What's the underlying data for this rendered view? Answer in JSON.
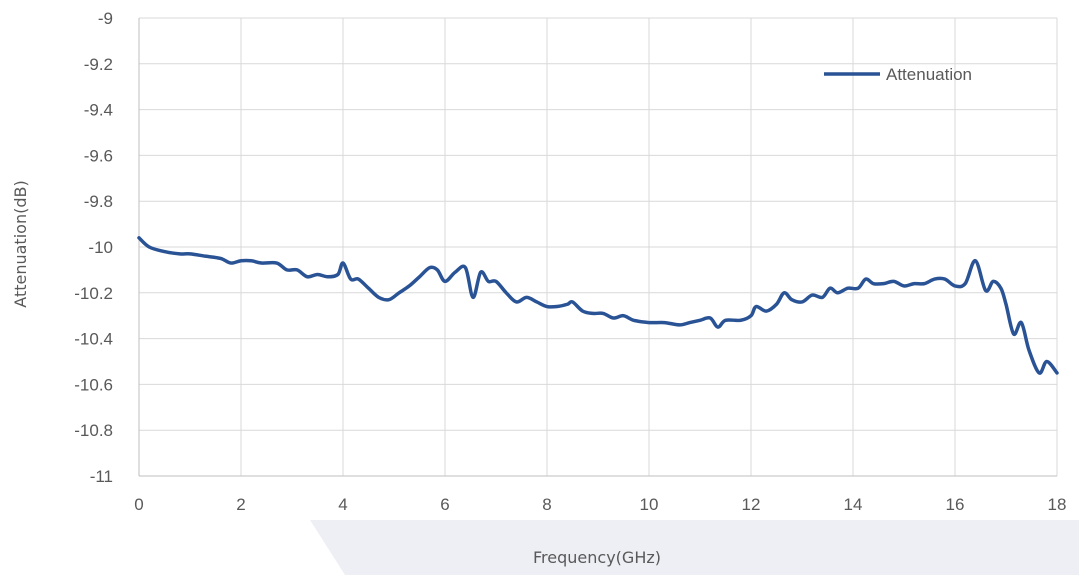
{
  "chart_data": {
    "type": "line",
    "xlabel": "Frequency(GHz)",
    "ylabel": "Attenuation(dB)",
    "xlim": [
      0,
      18
    ],
    "ylim": [
      -11,
      -9
    ],
    "xticks": [
      "0",
      "2",
      "4",
      "6",
      "8",
      "10",
      "12",
      "14",
      "16",
      "18"
    ],
    "yticks": [
      "-9",
      "-9.2",
      "-9.4",
      "-9.6",
      "-9.8",
      "-10",
      "-10.2",
      "-10.4",
      "-10.6",
      "-10.8",
      "-11"
    ],
    "grid": true,
    "legend_position": "top-right",
    "series": [
      {
        "name": "Attenuation",
        "color": "#2a5395",
        "points": [
          [
            0.0,
            -9.96
          ],
          [
            0.2,
            -10.0
          ],
          [
            0.5,
            -10.02
          ],
          [
            0.8,
            -10.03
          ],
          [
            1.0,
            -10.03
          ],
          [
            1.3,
            -10.04
          ],
          [
            1.6,
            -10.05
          ],
          [
            1.8,
            -10.07
          ],
          [
            2.0,
            -10.06
          ],
          [
            2.2,
            -10.06
          ],
          [
            2.4,
            -10.07
          ],
          [
            2.7,
            -10.07
          ],
          [
            2.9,
            -10.1
          ],
          [
            3.1,
            -10.1
          ],
          [
            3.3,
            -10.13
          ],
          [
            3.5,
            -10.12
          ],
          [
            3.7,
            -10.13
          ],
          [
            3.9,
            -10.12
          ],
          [
            4.0,
            -10.07
          ],
          [
            4.15,
            -10.14
          ],
          [
            4.3,
            -10.14
          ],
          [
            4.5,
            -10.18
          ],
          [
            4.7,
            -10.22
          ],
          [
            4.9,
            -10.23
          ],
          [
            5.1,
            -10.2
          ],
          [
            5.3,
            -10.17
          ],
          [
            5.5,
            -10.13
          ],
          [
            5.7,
            -10.09
          ],
          [
            5.85,
            -10.1
          ],
          [
            6.0,
            -10.15
          ],
          [
            6.2,
            -10.11
          ],
          [
            6.4,
            -10.09
          ],
          [
            6.55,
            -10.22
          ],
          [
            6.7,
            -10.11
          ],
          [
            6.85,
            -10.15
          ],
          [
            7.0,
            -10.15
          ],
          [
            7.2,
            -10.2
          ],
          [
            7.4,
            -10.24
          ],
          [
            7.6,
            -10.22
          ],
          [
            7.8,
            -10.24
          ],
          [
            8.0,
            -10.26
          ],
          [
            8.2,
            -10.26
          ],
          [
            8.4,
            -10.25
          ],
          [
            8.5,
            -10.24
          ],
          [
            8.7,
            -10.28
          ],
          [
            8.9,
            -10.29
          ],
          [
            9.1,
            -10.29
          ],
          [
            9.3,
            -10.31
          ],
          [
            9.5,
            -10.3
          ],
          [
            9.7,
            -10.32
          ],
          [
            10.0,
            -10.33
          ],
          [
            10.3,
            -10.33
          ],
          [
            10.6,
            -10.34
          ],
          [
            10.8,
            -10.33
          ],
          [
            11.0,
            -10.32
          ],
          [
            11.2,
            -10.31
          ],
          [
            11.35,
            -10.35
          ],
          [
            11.5,
            -10.32
          ],
          [
            11.8,
            -10.32
          ],
          [
            12.0,
            -10.3
          ],
          [
            12.1,
            -10.26
          ],
          [
            12.3,
            -10.28
          ],
          [
            12.5,
            -10.25
          ],
          [
            12.65,
            -10.2
          ],
          [
            12.8,
            -10.23
          ],
          [
            13.0,
            -10.24
          ],
          [
            13.2,
            -10.21
          ],
          [
            13.4,
            -10.22
          ],
          [
            13.55,
            -10.18
          ],
          [
            13.7,
            -10.2
          ],
          [
            13.9,
            -10.18
          ],
          [
            14.1,
            -10.18
          ],
          [
            14.25,
            -10.14
          ],
          [
            14.4,
            -10.16
          ],
          [
            14.6,
            -10.16
          ],
          [
            14.8,
            -10.15
          ],
          [
            15.0,
            -10.17
          ],
          [
            15.2,
            -10.16
          ],
          [
            15.4,
            -10.16
          ],
          [
            15.6,
            -10.14
          ],
          [
            15.8,
            -10.14
          ],
          [
            16.0,
            -10.17
          ],
          [
            16.2,
            -10.16
          ],
          [
            16.4,
            -10.06
          ],
          [
            16.6,
            -10.19
          ],
          [
            16.75,
            -10.15
          ],
          [
            16.9,
            -10.18
          ],
          [
            17.0,
            -10.25
          ],
          [
            17.15,
            -10.38
          ],
          [
            17.3,
            -10.33
          ],
          [
            17.45,
            -10.45
          ],
          [
            17.65,
            -10.55
          ],
          [
            17.8,
            -10.5
          ],
          [
            18.0,
            -10.55
          ]
        ]
      }
    ]
  }
}
